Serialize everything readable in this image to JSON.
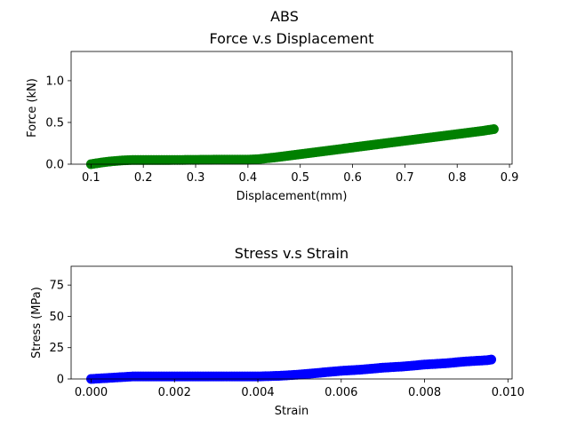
{
  "suptitle": "ABS",
  "chart_data": [
    {
      "type": "scatter",
      "title": "Force v.s Displacement",
      "xlabel": "Displacement(mm)",
      "ylabel": "Force (kN)",
      "xlim": [
        0.062,
        0.905
      ],
      "ylim": [
        0.0,
        1.35
      ],
      "xticks": [
        0.1,
        0.2,
        0.3,
        0.4,
        0.5,
        0.6,
        0.7,
        0.8,
        0.9
      ],
      "xtick_labels": [
        "0.1",
        "0.2",
        "0.3",
        "0.4",
        "0.5",
        "0.6",
        "0.7",
        "0.8",
        "0.9"
      ],
      "yticks": [
        0.0,
        0.5,
        1.0
      ],
      "ytick_labels": [
        "0.0",
        "0.5",
        "1.0"
      ],
      "grid": false,
      "series": [
        {
          "color": "#008000",
          "x": [
            0.1,
            0.12,
            0.14,
            0.16,
            0.18,
            0.2,
            0.25,
            0.3,
            0.35,
            0.4,
            0.42,
            0.45,
            0.5,
            0.55,
            0.6,
            0.65,
            0.7,
            0.75,
            0.8,
            0.85,
            0.87
          ],
          "y": [
            0.0,
            0.02,
            0.035,
            0.045,
            0.05,
            0.05,
            0.05,
            0.052,
            0.055,
            0.055,
            0.06,
            0.08,
            0.12,
            0.16,
            0.2,
            0.24,
            0.28,
            0.32,
            0.36,
            0.4,
            0.42
          ]
        }
      ]
    },
    {
      "type": "scatter",
      "title": "Stress v.s Strain",
      "xlabel": "Strain",
      "ylabel": "Stress (MPa)",
      "xlim": [
        -0.00048,
        0.0101
      ],
      "ylim": [
        0,
        90
      ],
      "xticks": [
        0.0,
        0.002,
        0.004,
        0.006,
        0.008,
        0.01
      ],
      "xtick_labels": [
        "0.000",
        "0.002",
        "0.004",
        "0.006",
        "0.008",
        "0.010"
      ],
      "yticks": [
        0,
        25,
        50,
        75
      ],
      "ytick_labels": [
        "0",
        "25",
        "50",
        "75"
      ],
      "grid": false,
      "series": [
        {
          "color": "#0000ff",
          "x": [
            0.0,
            0.0005,
            0.001,
            0.0015,
            0.002,
            0.003,
            0.004,
            0.0045,
            0.005,
            0.0055,
            0.006,
            0.0065,
            0.007,
            0.0075,
            0.008,
            0.0085,
            0.009,
            0.0095,
            0.0096
          ],
          "y": [
            0,
            1.0,
            2.0,
            2.0,
            2.0,
            2.0,
            2.0,
            2.5,
            3.5,
            5.0,
            6.5,
            7.5,
            9.0,
            10.0,
            11.5,
            12.5,
            14.0,
            15.0,
            15.5
          ]
        }
      ]
    }
  ]
}
